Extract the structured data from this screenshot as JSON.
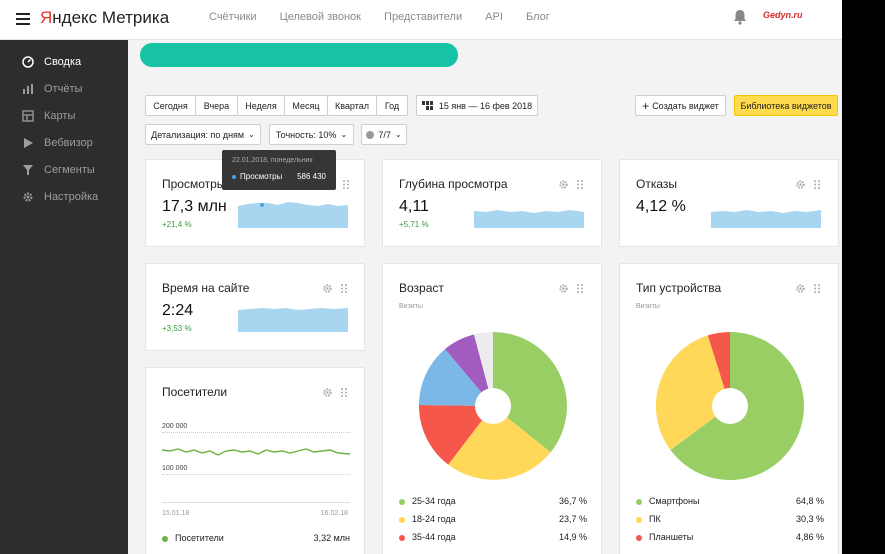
{
  "header": {
    "logo_prefix": "Я",
    "logo_rest": "ндекс",
    "logo_product": "Метрика",
    "nav": [
      "Счётчики",
      "Целевой звонок",
      "Представители",
      "API",
      "Блог"
    ],
    "avatar_text": "Gedyn.ru"
  },
  "sidebar": {
    "items": [
      {
        "label": "Сводка",
        "icon": "dashboard-icon"
      },
      {
        "label": "Отчёты",
        "icon": "bar-chart-icon"
      },
      {
        "label": "Карты",
        "icon": "map-icon"
      },
      {
        "label": "Вебвизор",
        "icon": "play-icon"
      },
      {
        "label": "Сегменты",
        "icon": "filter-icon"
      },
      {
        "label": "Настройка",
        "icon": "gear-icon"
      }
    ]
  },
  "toolbar": {
    "periods": [
      "Сегодня",
      "Вчера",
      "Неделя",
      "Месяц",
      "Квартал",
      "Год"
    ],
    "date_range": "15 янв — 16 фев 2018",
    "create_widget": "Создать виджет",
    "widget_library": "Библиотека виджетов",
    "detail": "Детализация: по дням",
    "accuracy": "Точность: 10%",
    "segments": "7/7"
  },
  "tooltip": {
    "date": "22.01.2018, понедельник",
    "metric": "Просмотры",
    "value": "586 430"
  },
  "widgets": {
    "views": {
      "title": "Просмотры",
      "value": "17,3 млн",
      "delta": "+21,4 %"
    },
    "depth": {
      "title": "Глубина просмотра",
      "value": "4,11",
      "delta": "+5,71 %"
    },
    "bounce": {
      "title": "Отказы",
      "value": "4,12 %"
    },
    "time": {
      "title": "Время на сайте",
      "value": "2:24",
      "delta": "+3,53 %"
    },
    "visitors": {
      "title": "Посетители",
      "y_hi": "200 000",
      "y_lo": "100 000",
      "x_start": "15.01.18",
      "x_end": "16.02.18",
      "legend_name": "Посетители",
      "legend_value": "3,32 млн"
    },
    "age": {
      "title": "Возраст",
      "subtitle": "Визиты",
      "legend": [
        {
          "label": "25-34 года",
          "value": "36,7 %"
        },
        {
          "label": "18-24 года",
          "value": "23,7 %"
        },
        {
          "label": "35-44 года",
          "value": "14,9 %"
        }
      ]
    },
    "device": {
      "title": "Тип устройства",
      "subtitle": "Визиты",
      "legend": [
        {
          "label": "Смартфоны",
          "value": "64,8 %"
        },
        {
          "label": "ПК",
          "value": "30,3 %"
        },
        {
          "label": "Планшеты",
          "value": "4,86 %"
        }
      ]
    }
  },
  "colors": {
    "green": "#99ce64",
    "yellow": "#ffd85a",
    "red": "#f5574b",
    "blue": "#7bb8e8",
    "purple": "#a25bbf",
    "white": "#ececec",
    "area": "#a8d6f0",
    "line": "#6cb23e"
  }
}
